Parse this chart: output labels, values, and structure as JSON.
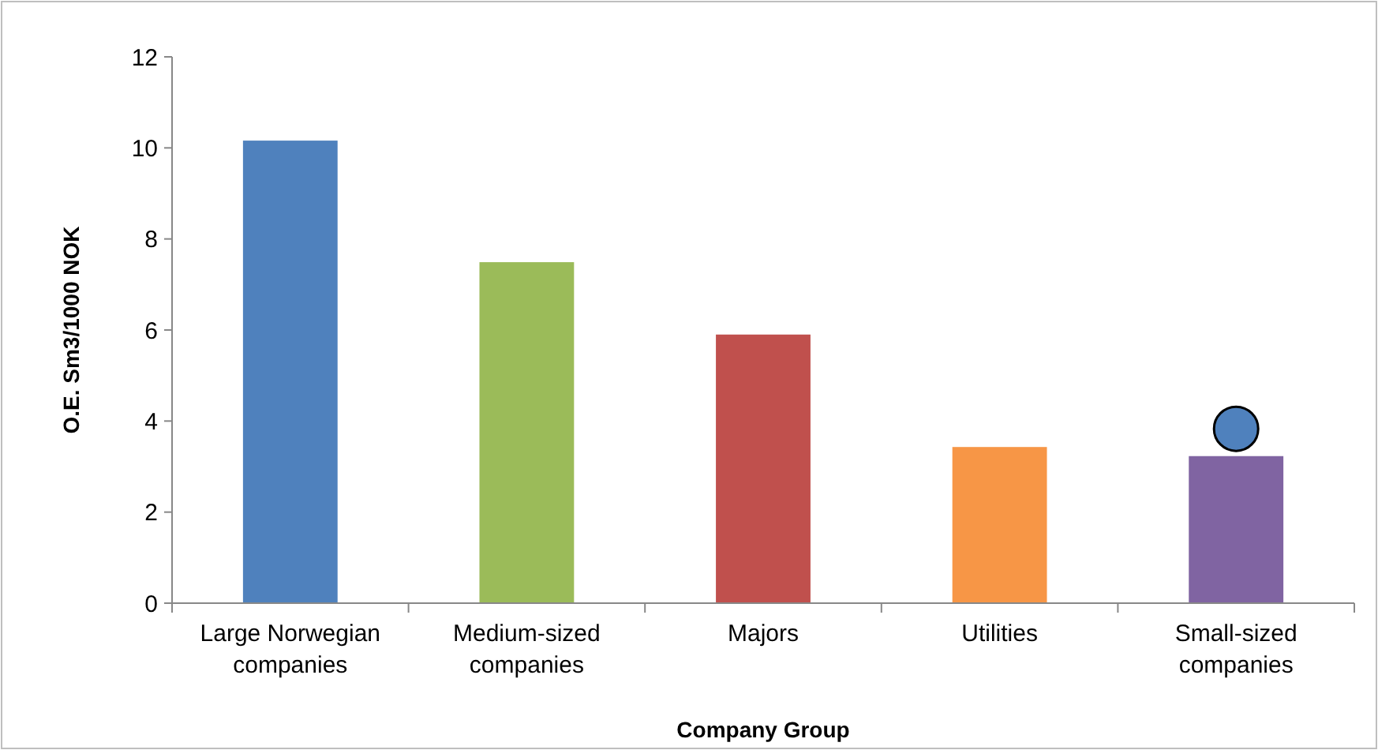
{
  "chart_data": {
    "type": "bar",
    "xlabel": "Company Group",
    "ylabel": "O.E. Sm3/1000 NOK",
    "categories": [
      "Large Norwegian companies",
      "Medium-sized companies",
      "Majors",
      "Utilities",
      "Small-sized companies"
    ],
    "ylim": [
      0,
      12
    ],
    "yticks": [
      0,
      2,
      4,
      6,
      8,
      10,
      12
    ],
    "grid": false,
    "series": [
      {
        "values": [
          10.16,
          7.49,
          5.9,
          3.43,
          3.23
        ],
        "colors": [
          "#4f81bd",
          "#9bbb59",
          "#c0504d",
          "#f79646",
          "#8064a2"
        ]
      },
      {
        "type": "scatter",
        "x": [
          "Small-sized companies"
        ],
        "values": [
          3.83
        ],
        "color": "#4f81bd",
        "marker": "circle"
      }
    ]
  }
}
